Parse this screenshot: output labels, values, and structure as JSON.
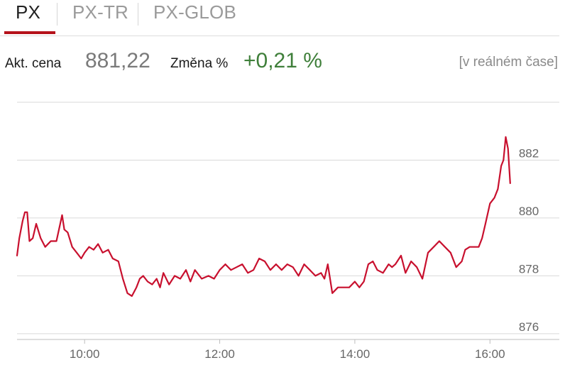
{
  "tabs": [
    {
      "label": "PX",
      "active": true
    },
    {
      "label": "PX-TR",
      "active": false
    },
    {
      "label": "PX-GLOB",
      "active": false
    }
  ],
  "quote": {
    "price_label": "Akt. cena",
    "price": "881,22",
    "change_label": "Změna %",
    "change": "+0,21 %",
    "realtime": "[v reálném čase]"
  },
  "colors": {
    "accent": "#b5121b",
    "line": "#c8102e",
    "positive": "#3f7f3a",
    "grid": "#d9d9d9"
  },
  "chart_data": {
    "type": "line",
    "title": "",
    "xlabel": "",
    "ylabel": "",
    "xlim": [
      "09:00",
      "16:20"
    ],
    "ylim": [
      875.8,
      884.0
    ],
    "grid": true,
    "y_ticks": [
      876,
      878,
      880,
      882
    ],
    "y_tick_labels": [
      "876",
      "878",
      "880",
      "882"
    ],
    "x_ticks": [
      "10:00",
      "12:00",
      "14:00",
      "16:00"
    ],
    "x_tick_labels": [
      "10:00",
      "12:00",
      "14:00",
      "16:00"
    ],
    "series": [
      {
        "x": [
          "09:00",
          "09:02",
          "09:05",
          "09:07",
          "09:09",
          "09:11",
          "09:14",
          "09:17",
          "09:21",
          "09:25",
          "09:30",
          "09:35",
          "09:40",
          "09:42",
          "09:45",
          "09:49",
          "09:53",
          "09:57",
          "10:00",
          "10:04",
          "10:08",
          "10:12",
          "10:16",
          "10:21",
          "10:25",
          "10:30",
          "10:34",
          "10:38",
          "10:42",
          "10:46",
          "10:49",
          "10:52",
          "10:56",
          "11:00",
          "11:04",
          "11:07",
          "11:10",
          "11:15",
          "11:20",
          "11:25",
          "11:30",
          "11:34",
          "11:38",
          "11:44",
          "11:50",
          "11:55",
          "12:00",
          "12:05",
          "12:10",
          "12:15",
          "12:20",
          "12:25",
          "12:30",
          "12:35",
          "12:40",
          "12:45",
          "12:50",
          "12:55",
          "13:00",
          "13:05",
          "13:10",
          "13:15",
          "13:20",
          "13:25",
          "13:30",
          "13:33",
          "13:36",
          "13:40",
          "13:45",
          "13:50",
          "13:55",
          "14:00",
          "14:04",
          "14:08",
          "14:12",
          "14:16",
          "14:20",
          "14:25",
          "14:30",
          "14:33",
          "14:36",
          "14:41",
          "14:45",
          "14:50",
          "14:55",
          "15:00",
          "15:05",
          "15:10",
          "15:15",
          "15:20",
          "15:25",
          "15:30",
          "15:35",
          "15:38",
          "15:42",
          "15:46",
          "15:50",
          "15:53",
          "15:56",
          "16:00",
          "16:04",
          "16:07",
          "16:10",
          "16:12",
          "16:14",
          "16:16",
          "16:18"
        ],
        "y": [
          878.7,
          879.3,
          879.9,
          880.2,
          880.2,
          879.2,
          879.3,
          879.8,
          879.3,
          879.0,
          879.2,
          879.2,
          880.1,
          879.6,
          879.5,
          879.0,
          878.8,
          878.6,
          878.8,
          879.0,
          878.9,
          879.1,
          878.8,
          878.9,
          878.6,
          878.5,
          877.9,
          877.4,
          877.3,
          877.6,
          877.9,
          878.0,
          877.8,
          877.7,
          877.9,
          877.6,
          878.1,
          877.7,
          878.0,
          877.9,
          878.2,
          877.8,
          878.2,
          877.9,
          878.0,
          877.9,
          878.2,
          878.4,
          878.2,
          878.3,
          878.4,
          878.1,
          878.2,
          878.6,
          878.5,
          878.2,
          878.4,
          878.2,
          878.4,
          878.3,
          878.0,
          878.4,
          878.2,
          878.0,
          878.1,
          877.9,
          878.4,
          877.4,
          877.6,
          877.6,
          877.6,
          877.8,
          877.6,
          877.8,
          878.4,
          878.5,
          878.2,
          878.1,
          878.4,
          878.3,
          878.4,
          878.7,
          878.1,
          878.5,
          878.3,
          877.9,
          878.8,
          879.0,
          879.2,
          879.0,
          878.8,
          878.3,
          878.5,
          878.9,
          879.0,
          879.0,
          879.0,
          879.3,
          879.8,
          880.5,
          880.7,
          881.0,
          881.8,
          882.0,
          882.8,
          882.4,
          881.2
        ]
      }
    ]
  }
}
